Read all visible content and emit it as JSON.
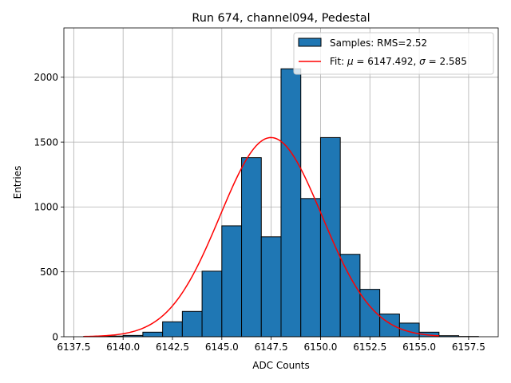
{
  "chart_data": {
    "type": "bar",
    "title": "Run 674, channel094, Pedestal",
    "xlabel": "ADC Counts",
    "ylabel": "Entries",
    "xlim": [
      6137.0,
      6159.0
    ],
    "ylim": [
      0,
      2380
    ],
    "xticks": [
      6137.5,
      6140.0,
      6142.5,
      6145.0,
      6147.5,
      6150.0,
      6152.5,
      6155.0,
      6157.5
    ],
    "xtick_labels": [
      "6137.5",
      "6140.0",
      "6142.5",
      "6145.0",
      "6147.5",
      "6150.0",
      "6152.5",
      "6155.0",
      "6157.5"
    ],
    "yticks": [
      0,
      500,
      1000,
      1500,
      2000
    ],
    "ytick_labels": [
      "0",
      "500",
      "1000",
      "1500",
      "2000"
    ],
    "grid": true,
    "legend_position": "top-right",
    "histogram": {
      "name": "Samples: RMS=2.52",
      "color": "#1f77b4",
      "edge_color": "#000000",
      "bin_edges": [
        6138,
        6139,
        6140,
        6141,
        6142,
        6143,
        6144,
        6145,
        6146,
        6147,
        6148,
        6149,
        6150,
        6151,
        6152,
        6153,
        6154,
        6155,
        6156,
        6157,
        6158
      ],
      "counts": [
        2,
        5,
        10,
        35,
        115,
        195,
        505,
        855,
        1380,
        770,
        2065,
        1065,
        1535,
        635,
        365,
        175,
        105,
        35,
        8,
        2
      ]
    },
    "fit": {
      "name_prefix": "Fit: ",
      "mu_symbol": "μ",
      "equals": " = ",
      "mu_value": "6147.492",
      "separator": ", ",
      "sigma_symbol": "σ",
      "sigma_value": "2.585",
      "color": "#ff0000",
      "mu": 6147.492,
      "sigma": 2.585,
      "amplitude": 1535,
      "x_range": [
        6138.0,
        6156.0
      ]
    }
  }
}
